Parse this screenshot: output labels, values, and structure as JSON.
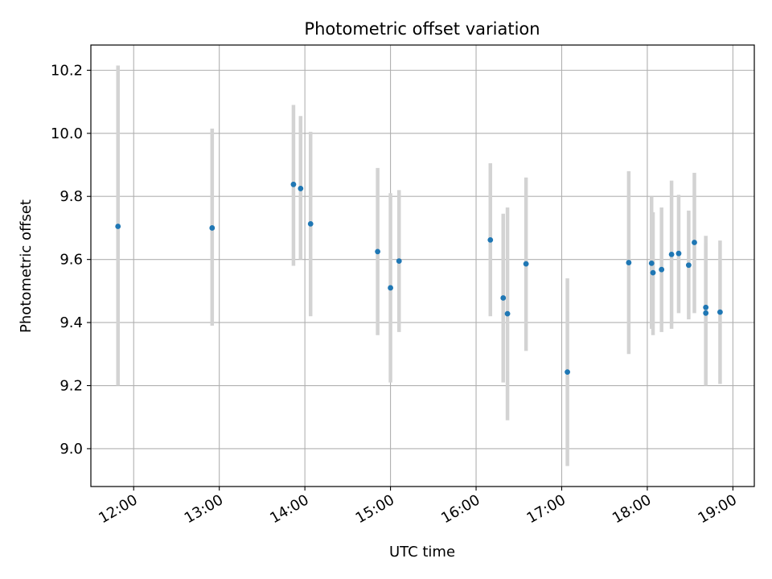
{
  "chart_data": {
    "type": "scatter",
    "title": "Photometric offset variation",
    "xlabel": "UTC time",
    "ylabel": "Photometric offset",
    "xlim": [
      "11:30",
      "19:15"
    ],
    "ylim": [
      8.88,
      10.28
    ],
    "x_ticks": [
      "12:00",
      "13:00",
      "14:00",
      "15:00",
      "16:00",
      "17:00",
      "18:00",
      "19:00"
    ],
    "y_ticks": [
      "9.0",
      "9.2",
      "9.4",
      "9.6",
      "9.8",
      "10.0",
      "10.2"
    ],
    "grid": true,
    "colors": {
      "point": "#1f77b4",
      "errorbar": "#d3d3d3",
      "grid": "#b0b0b0"
    },
    "points": [
      {
        "x": "11:49",
        "y": 9.705,
        "low": 9.2,
        "high": 10.215
      },
      {
        "x": "12:55",
        "y": 9.7,
        "low": 9.39,
        "high": 10.015
      },
      {
        "x": "13:52",
        "y": 9.838,
        "low": 9.58,
        "high": 10.09
      },
      {
        "x": "13:57",
        "y": 9.825,
        "low": 9.6,
        "high": 10.055
      },
      {
        "x": "14:04",
        "y": 9.713,
        "low": 9.42,
        "high": 10.005
      },
      {
        "x": "14:51",
        "y": 9.625,
        "low": 9.36,
        "high": 9.89
      },
      {
        "x": "15:00",
        "y": 9.51,
        "low": 9.21,
        "high": 9.81
      },
      {
        "x": "15:06",
        "y": 9.595,
        "low": 9.37,
        "high": 9.82
      },
      {
        "x": "16:10",
        "y": 9.662,
        "low": 9.42,
        "high": 9.905
      },
      {
        "x": "16:19",
        "y": 9.478,
        "low": 9.21,
        "high": 9.745
      },
      {
        "x": "16:22",
        "y": 9.428,
        "low": 9.09,
        "high": 9.765
      },
      {
        "x": "16:35",
        "y": 9.586,
        "low": 9.31,
        "high": 9.86
      },
      {
        "x": "17:04",
        "y": 9.243,
        "low": 8.945,
        "high": 9.54
      },
      {
        "x": "17:47",
        "y": 9.59,
        "low": 9.3,
        "high": 9.88
      },
      {
        "x": "18:03",
        "y": 9.588,
        "low": 9.38,
        "high": 9.8
      },
      {
        "x": "18:04",
        "y": 9.558,
        "low": 9.36,
        "high": 9.75
      },
      {
        "x": "18:10",
        "y": 9.568,
        "low": 9.37,
        "high": 9.765
      },
      {
        "x": "18:17",
        "y": 9.616,
        "low": 9.38,
        "high": 9.85
      },
      {
        "x": "18:22",
        "y": 9.619,
        "low": 9.43,
        "high": 9.805
      },
      {
        "x": "18:29",
        "y": 9.582,
        "low": 9.41,
        "high": 9.755
      },
      {
        "x": "18:33",
        "y": 9.654,
        "low": 9.43,
        "high": 9.875
      },
      {
        "x": "18:41",
        "y": 9.448,
        "low": 9.22,
        "high": 9.675
      },
      {
        "x": "18:41",
        "y": 9.43,
        "low": 9.2,
        "high": 9.65
      },
      {
        "x": "18:51",
        "y": 9.433,
        "low": 9.205,
        "high": 9.66
      }
    ]
  }
}
